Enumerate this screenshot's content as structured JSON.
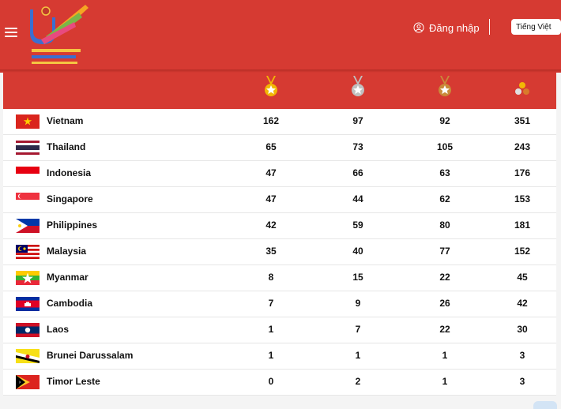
{
  "header": {
    "menu_icon": "hamburger-menu-icon",
    "logo_icon": "sea-games-logo",
    "login_label": "Đăng nhập",
    "language_label": "Tiếng Việt",
    "brand_color": "#d63a32"
  },
  "table": {
    "columns": [
      {
        "icon": "gold-medal-icon",
        "color": "#f2b705"
      },
      {
        "icon": "silver-medal-icon",
        "color": "#c0c0c0"
      },
      {
        "icon": "bronze-medal-icon",
        "color": "#c98a3a"
      },
      {
        "icon": "total-medals-icon",
        "color": "#f2b705"
      }
    ],
    "rows": [
      {
        "country": "Vietnam",
        "gold": "162",
        "silver": "97",
        "bronze": "92",
        "total": "351"
      },
      {
        "country": "Thailand",
        "gold": "65",
        "silver": "73",
        "bronze": "105",
        "total": "243"
      },
      {
        "country": "Indonesia",
        "gold": "47",
        "silver": "66",
        "bronze": "63",
        "total": "176"
      },
      {
        "country": "Singapore",
        "gold": "47",
        "silver": "44",
        "bronze": "62",
        "total": "153"
      },
      {
        "country": "Philippines",
        "gold": "42",
        "silver": "59",
        "bronze": "80",
        "total": "181"
      },
      {
        "country": "Malaysia",
        "gold": "35",
        "silver": "40",
        "bronze": "77",
        "total": "152"
      },
      {
        "country": "Myanmar",
        "gold": "8",
        "silver": "15",
        "bronze": "22",
        "total": "45"
      },
      {
        "country": "Cambodia",
        "gold": "7",
        "silver": "9",
        "bronze": "26",
        "total": "42"
      },
      {
        "country": "Laos",
        "gold": "1",
        "silver": "7",
        "bronze": "22",
        "total": "30"
      },
      {
        "country": "Brunei Darussalam",
        "gold": "1",
        "silver": "1",
        "bronze": "1",
        "total": "3"
      },
      {
        "country": "Timor Leste",
        "gold": "0",
        "silver": "2",
        "bronze": "1",
        "total": "3"
      }
    ]
  }
}
